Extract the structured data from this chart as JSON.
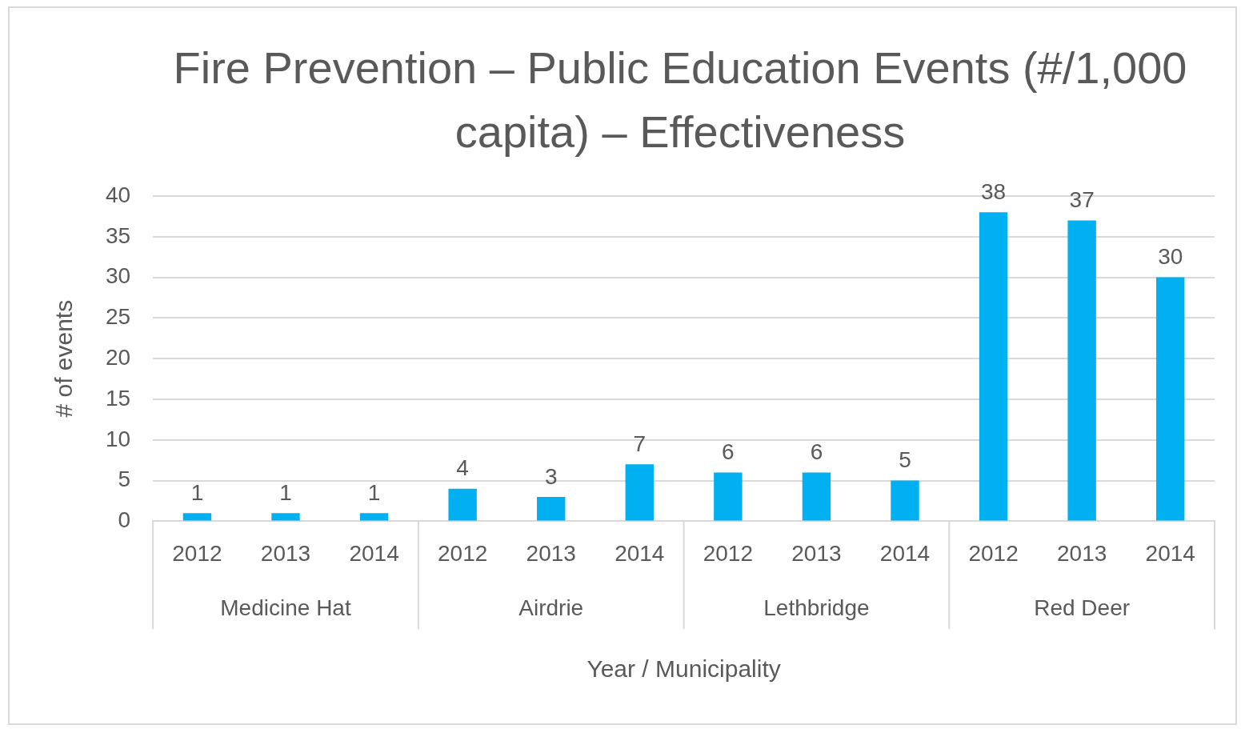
{
  "chart_data": {
    "type": "bar",
    "title": "Fire Prevention – Public Education Events (#/1,000 capita) – Effectiveness",
    "xlabel": "Year / Municipality",
    "ylabel": "# of events",
    "categories": [
      "2012",
      "2013",
      "2014",
      "2012",
      "2013",
      "2014",
      "2012",
      "2013",
      "2014",
      "2012",
      "2013",
      "2014"
    ],
    "values": [
      1,
      1,
      1,
      4,
      3,
      7,
      6,
      6,
      5,
      38,
      37,
      30
    ],
    "color": "#00b0f0",
    "annotations": [
      "Medicine Hat",
      "Airdrie",
      "Lethbridge",
      "Red Deer"
    ],
    "ylim": [
      0,
      40
    ],
    "yticks": [
      0,
      5,
      10,
      15,
      20,
      25,
      30,
      35,
      40
    ],
    "grid": "y",
    "legend": false,
    "data_labels": true
  }
}
